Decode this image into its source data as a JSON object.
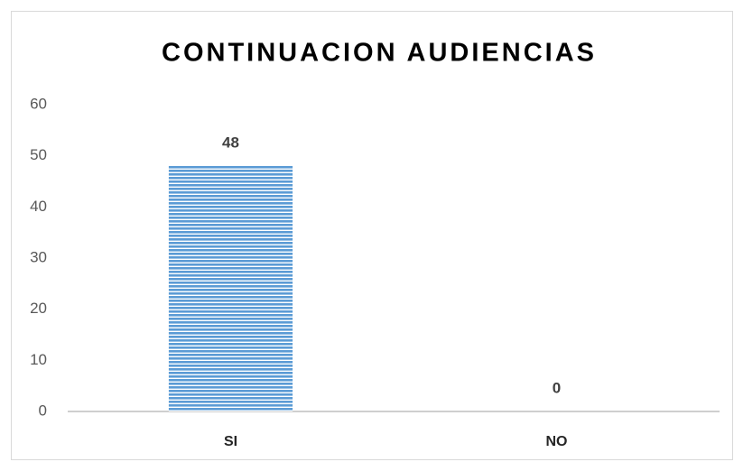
{
  "chart_data": {
    "type": "bar",
    "title": "CONTINUACION AUDIENCIAS",
    "categories": [
      "SI",
      "NO"
    ],
    "values": [
      48,
      0
    ],
    "color": "#5b9bd5",
    "ylim": [
      0,
      60
    ],
    "yticks": [
      0,
      10,
      20,
      30,
      40,
      50,
      60
    ],
    "grid": false,
    "data_labels": true
  }
}
